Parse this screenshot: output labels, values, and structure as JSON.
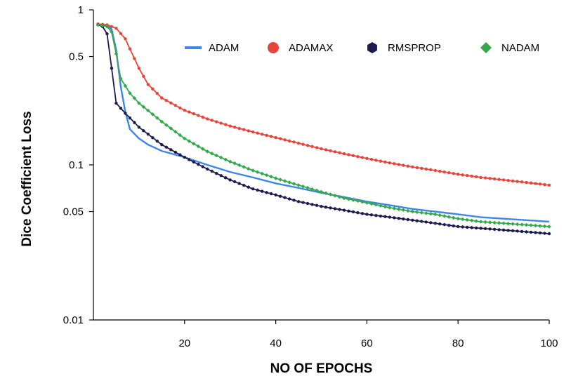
{
  "chart_data": {
    "type": "line",
    "title": "",
    "xlabel": "NO OF EPOCHS",
    "ylabel": "Dice Coefficient Loss",
    "xlim": [
      0,
      100
    ],
    "ylim": [
      0.01,
      1
    ],
    "yscale": "log",
    "grid": false,
    "legend_position": "top-right",
    "x_ticks": [
      20,
      40,
      60,
      80,
      100
    ],
    "x_tick_labels": [
      "20",
      "40",
      "60",
      "80",
      "100"
    ],
    "y_ticks": [
      1,
      0.5,
      0.1,
      0.05,
      0.01
    ],
    "y_tick_labels": [
      "1",
      "0.5",
      "0.1",
      "0.05",
      "0.01"
    ],
    "series": [
      {
        "name": "ADAM",
        "color": "#3d85e8",
        "marker": "line",
        "points": [
          [
            1,
            0.8
          ],
          [
            3,
            0.79
          ],
          [
            4,
            0.75
          ],
          [
            5,
            0.55
          ],
          [
            6,
            0.32
          ],
          [
            7,
            0.22
          ],
          [
            8,
            0.17
          ],
          [
            10,
            0.148
          ],
          [
            12,
            0.135
          ],
          [
            15,
            0.123
          ],
          [
            20,
            0.112
          ],
          [
            25,
            0.1
          ],
          [
            30,
            0.09
          ],
          [
            35,
            0.083
          ],
          [
            40,
            0.076
          ],
          [
            45,
            0.071
          ],
          [
            50,
            0.066
          ],
          [
            55,
            0.062
          ],
          [
            60,
            0.058
          ],
          [
            65,
            0.055
          ],
          [
            70,
            0.052
          ],
          [
            75,
            0.05
          ],
          [
            80,
            0.048
          ],
          [
            85,
            0.046
          ],
          [
            90,
            0.045
          ],
          [
            95,
            0.044
          ],
          [
            100,
            0.043
          ]
        ]
      },
      {
        "name": "ADAMAX",
        "color": "#e8443a",
        "marker": "circle",
        "points": [
          [
            1,
            0.81
          ],
          [
            3,
            0.8
          ],
          [
            5,
            0.76
          ],
          [
            7,
            0.65
          ],
          [
            8,
            0.56
          ],
          [
            10,
            0.42
          ],
          [
            12,
            0.33
          ],
          [
            15,
            0.27
          ],
          [
            20,
            0.225
          ],
          [
            25,
            0.198
          ],
          [
            30,
            0.178
          ],
          [
            35,
            0.163
          ],
          [
            40,
            0.15
          ],
          [
            45,
            0.138
          ],
          [
            50,
            0.127
          ],
          [
            55,
            0.118
          ],
          [
            60,
            0.11
          ],
          [
            65,
            0.103
          ],
          [
            70,
            0.097
          ],
          [
            75,
            0.092
          ],
          [
            80,
            0.087
          ],
          [
            85,
            0.083
          ],
          [
            90,
            0.08
          ],
          [
            95,
            0.077
          ],
          [
            100,
            0.074
          ]
        ]
      },
      {
        "name": "RMSPROP",
        "color": "#1c1a4e",
        "marker": "hexagon",
        "points": [
          [
            1,
            0.8
          ],
          [
            2,
            0.78
          ],
          [
            3,
            0.7
          ],
          [
            4,
            0.42
          ],
          [
            5,
            0.25
          ],
          [
            7,
            0.215
          ],
          [
            10,
            0.175
          ],
          [
            15,
            0.135
          ],
          [
            20,
            0.112
          ],
          [
            25,
            0.094
          ],
          [
            30,
            0.08
          ],
          [
            35,
            0.07
          ],
          [
            40,
            0.064
          ],
          [
            45,
            0.058
          ],
          [
            50,
            0.054
          ],
          [
            55,
            0.051
          ],
          [
            60,
            0.048
          ],
          [
            65,
            0.046
          ],
          [
            70,
            0.044
          ],
          [
            75,
            0.042
          ],
          [
            80,
            0.04
          ],
          [
            85,
            0.039
          ],
          [
            90,
            0.038
          ],
          [
            95,
            0.037
          ],
          [
            100,
            0.036
          ]
        ]
      },
      {
        "name": "NADAM",
        "color": "#34a84b",
        "marker": "diamond",
        "points": [
          [
            1,
            0.8
          ],
          [
            3,
            0.78
          ],
          [
            4,
            0.72
          ],
          [
            5,
            0.52
          ],
          [
            6,
            0.36
          ],
          [
            8,
            0.29
          ],
          [
            10,
            0.25
          ],
          [
            15,
            0.19
          ],
          [
            20,
            0.148
          ],
          [
            25,
            0.122
          ],
          [
            30,
            0.105
          ],
          [
            35,
            0.092
          ],
          [
            40,
            0.082
          ],
          [
            45,
            0.074
          ],
          [
            50,
            0.067
          ],
          [
            55,
            0.061
          ],
          [
            60,
            0.057
          ],
          [
            65,
            0.053
          ],
          [
            70,
            0.05
          ],
          [
            75,
            0.048
          ],
          [
            80,
            0.045
          ],
          [
            85,
            0.043
          ],
          [
            90,
            0.042
          ],
          [
            95,
            0.041
          ],
          [
            100,
            0.04
          ]
        ]
      }
    ]
  }
}
